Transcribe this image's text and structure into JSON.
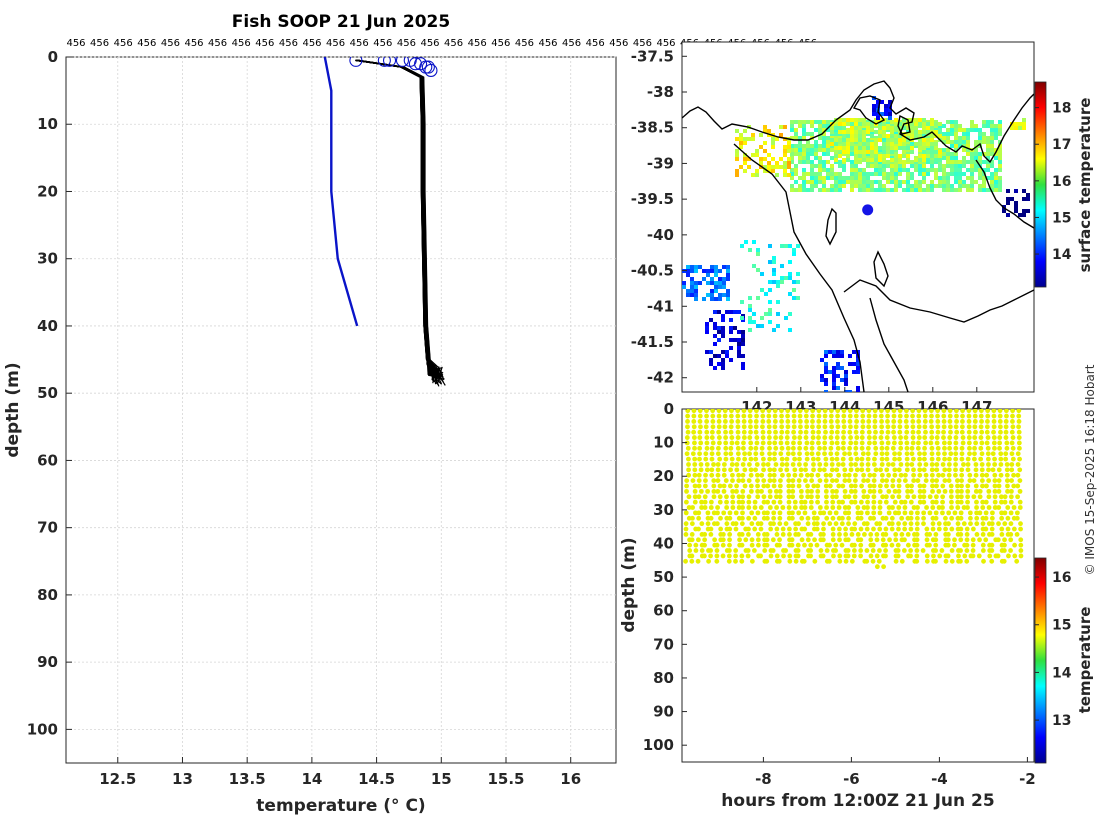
{
  "chart_data": [
    {
      "id": "profile",
      "type": "line",
      "title": "Fish SOOP 21 Jun 2025",
      "xlabel": "temperature (° C)",
      "ylabel": "depth (m)",
      "xlim": [
        12.1,
        16.35
      ],
      "ylim": [
        0,
        105
      ],
      "y_reversed": true,
      "grid": true,
      "xticks": [
        12.5,
        13,
        13.5,
        14,
        14.5,
        15,
        15.5,
        16
      ],
      "xtick_labels": [
        "12.5",
        "13",
        "13.5",
        "14",
        "14.5",
        "15",
        "15.5",
        "16"
      ],
      "yticks": [
        0,
        10,
        20,
        30,
        40,
        50,
        60,
        70,
        80,
        90,
        100
      ],
      "ytick_labels": [
        "0",
        "10",
        "20",
        "30",
        "40",
        "50",
        "60",
        "70",
        "80",
        "90",
        "100"
      ],
      "top_labels": [
        "456",
        "456",
        "456",
        "456",
        "456",
        "456",
        "456",
        "456",
        "456",
        "456",
        "456",
        "456",
        "456",
        "456",
        "456",
        "456",
        "456",
        "456",
        "456",
        "456",
        "456",
        "456",
        "456",
        "456",
        "456",
        "456",
        "456",
        "456",
        "456",
        "456",
        "456",
        "456"
      ],
      "series": [
        {
          "name": "climatology",
          "color": "#0a14c8",
          "x": [
            14.1,
            14.15,
            14.15,
            14.15,
            14.2,
            14.35
          ],
          "y": [
            0,
            5,
            10,
            20,
            30,
            40
          ]
        },
        {
          "name": "profiles",
          "color": "#000000",
          "x": [
            14.35,
            14.7,
            14.85,
            14.86,
            14.86,
            14.87,
            14.88,
            14.9,
            14.92,
            14.95,
            14.97
          ],
          "y": [
            0.5,
            1.5,
            3,
            10,
            20,
            30,
            40,
            45,
            46.5,
            47,
            48
          ]
        }
      ],
      "surface_markers": {
        "color": "#0a14c8",
        "x": [
          14.34,
          14.56,
          14.6,
          14.7,
          14.76,
          14.8,
          14.84,
          14.88,
          14.9,
          14.92
        ],
        "y": [
          0.5,
          0.5,
          0.5,
          0.5,
          0.5,
          1.0,
          1.0,
          1.5,
          1.5,
          2.0
        ]
      }
    },
    {
      "id": "map",
      "type": "heatmap",
      "title": "",
      "xlabel": "",
      "ylabel": "",
      "xtick_labels": [
        "142",
        "143",
        "144",
        "145",
        "146",
        "147"
      ],
      "xticks": [
        142,
        143,
        144,
        145,
        146,
        147
      ],
      "xlim": [
        140.3,
        148.3
      ],
      "ylim": [
        -42.2,
        -37.3
      ],
      "yticks": [
        -37.5,
        -38,
        -38.5,
        -39,
        -39.5,
        -40,
        -40.5,
        -41,
        -41.5,
        -42
      ],
      "ytick_labels": [
        "-37.5",
        "-38",
        "-38.5",
        "-39",
        "-39.5",
        "-40",
        "-40.5",
        "-41",
        "-41.5",
        "-42"
      ],
      "colorbar": {
        "label": "surface temperature",
        "range": [
          13.1,
          18.7
        ],
        "ticks": [
          14,
          15,
          16,
          17,
          18
        ],
        "tick_labels": [
          "14",
          "15",
          "16",
          "17",
          "18"
        ]
      },
      "vessel_position": {
        "lon": 144.52,
        "lat": -39.65,
        "color": "#1414e6"
      }
    },
    {
      "id": "timeseries",
      "type": "scatter",
      "xlabel": "hours from 12:00Z 21 Jun 25",
      "ylabel": "depth (m)",
      "xlim": [
        -9.85,
        -1.85
      ],
      "ylim": [
        0,
        105
      ],
      "y_reversed": true,
      "xticks": [
        -8,
        -6,
        -4,
        -2
      ],
      "xtick_labels": [
        "-8",
        "-6",
        "-4",
        "-2"
      ],
      "yticks": [
        0,
        10,
        20,
        30,
        40,
        50,
        60,
        70,
        80,
        90,
        100
      ],
      "ytick_labels": [
        "0",
        "10",
        "20",
        "30",
        "40",
        "50",
        "60",
        "70",
        "80",
        "90",
        "100"
      ],
      "point_color": "#e6f000",
      "profile_start": -9.72,
      "profile_end": -2.08,
      "profile_spacing": 0.142,
      "max_depth": 46,
      "colorbar": {
        "label": "temperature",
        "range": [
          12.1,
          16.4
        ],
        "ticks": [
          13,
          14,
          15,
          16
        ],
        "tick_labels": [
          "13",
          "14",
          "15",
          "16"
        ]
      }
    }
  ],
  "credit": "© IMOS 15-Sep-2025 16:18 Hobart"
}
